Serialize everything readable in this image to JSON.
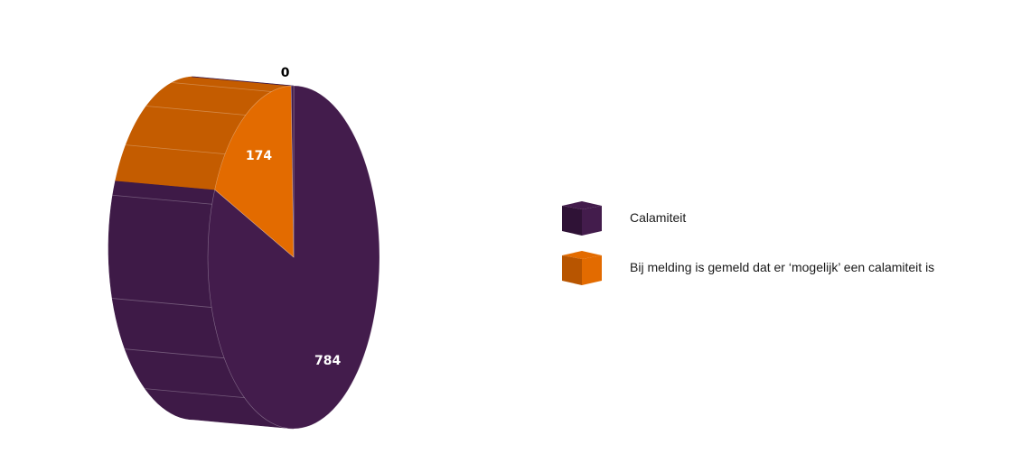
{
  "chart_data": {
    "type": "pie",
    "style": "3d",
    "categories": [
      "Calamiteit",
      "Bij melding is gemeld dat er ‘mogelijk’ een calamiteit is",
      ""
    ],
    "values": [
      784,
      174,
      0
    ],
    "colors": [
      "#431C4C",
      "#E36B00",
      "#431C4C"
    ],
    "side_colors": [
      "#3E1A47",
      "#C45C00",
      "#3E1A47"
    ],
    "data_labels": [
      "784",
      "174",
      "0"
    ],
    "legend_position": "right"
  },
  "legend": {
    "items": [
      {
        "label": "Calamiteit",
        "color": "#431C4C",
        "side": "#2F1236"
      },
      {
        "label": "Bij melding is gemeld dat er ‘mogelijk’ een calamiteit is",
        "color": "#E36B00",
        "side": "#B85500"
      }
    ]
  }
}
